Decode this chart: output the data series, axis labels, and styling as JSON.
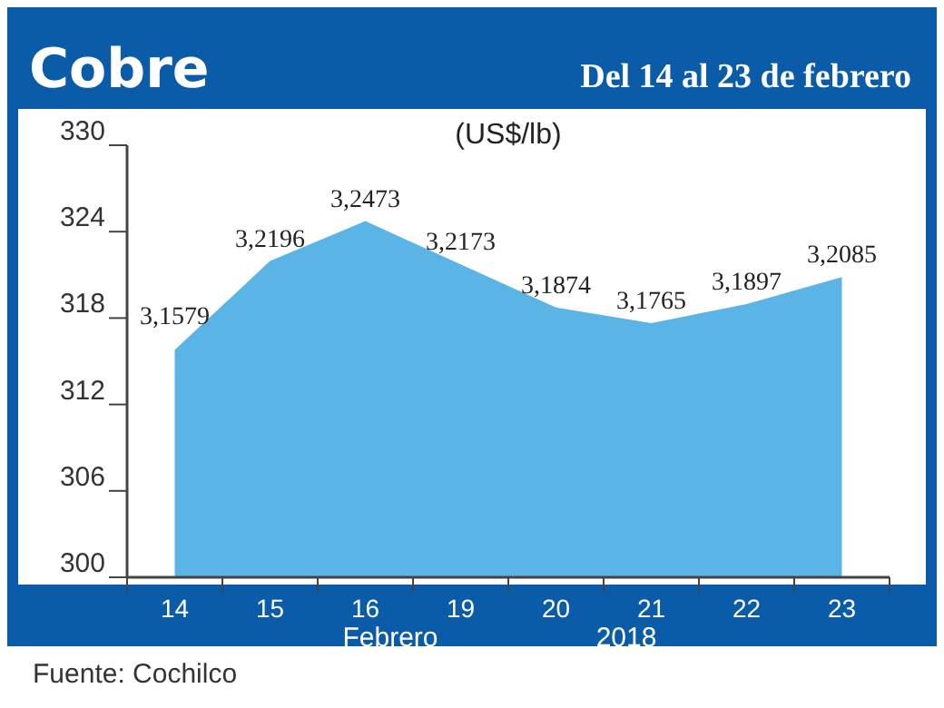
{
  "chart_data": {
    "type": "area",
    "title": "Cobre",
    "subtitle": "Del 14 al 23 de febrero",
    "ylabel": "(US$/lb)",
    "xlabel": "Febrero",
    "annotations": [
      "2018",
      "Fuente: Cochilco"
    ],
    "categories": [
      "14",
      "15",
      "16",
      "19",
      "20",
      "21",
      "22",
      "23"
    ],
    "values": [
      315.79,
      321.96,
      324.73,
      321.73,
      318.74,
      317.65,
      318.97,
      320.85
    ],
    "value_labels": [
      "3,1579",
      "3,2196",
      "3,2473",
      "3,2173",
      "3,1874",
      "3,1765",
      "3,1897",
      "3,2085"
    ],
    "color": "#5ab4e5",
    "ylim": [
      300,
      330
    ],
    "yticks": [
      300,
      306,
      312,
      318,
      324,
      330
    ]
  }
}
